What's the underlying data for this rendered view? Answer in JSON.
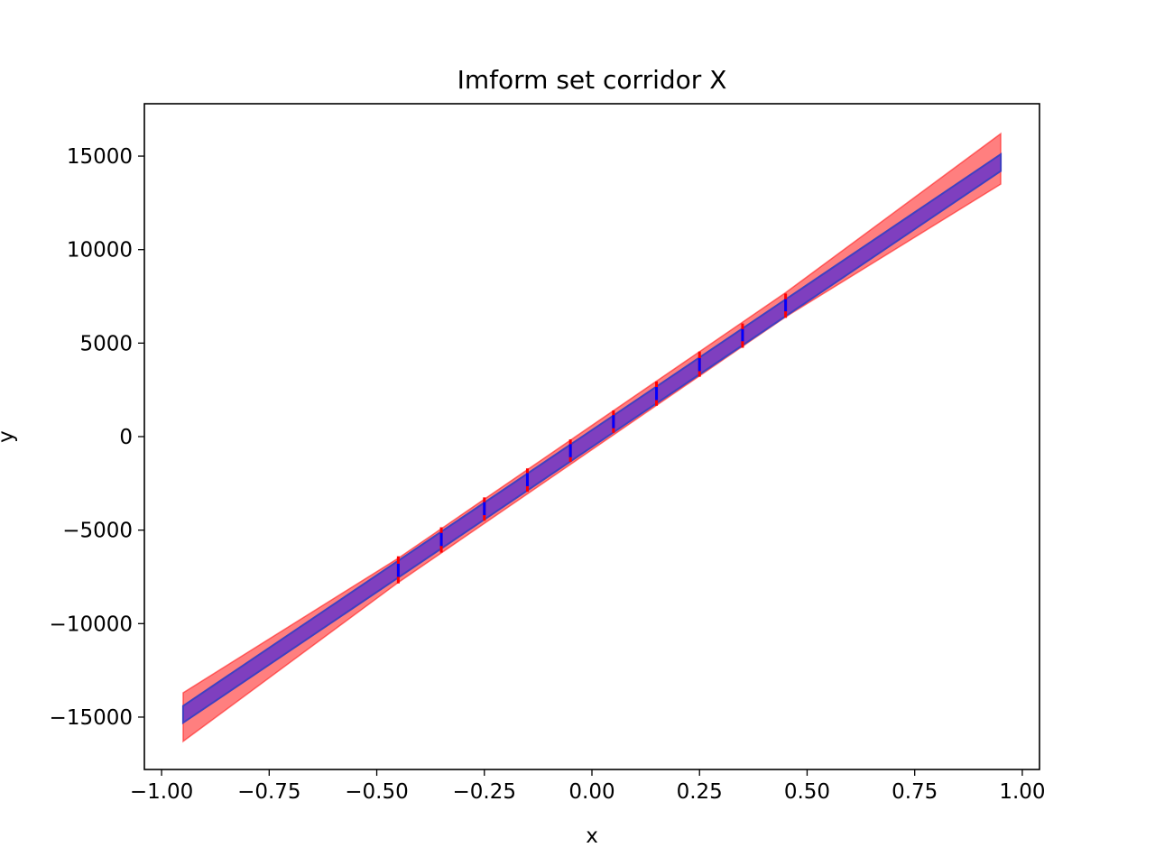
{
  "chart_data": {
    "type": "line",
    "title": "Imform set corridor X",
    "xlabel": "x",
    "ylabel": "y",
    "xlim": [
      -1.04,
      1.04
    ],
    "ylim": [
      -17800,
      17800
    ],
    "xticks": [
      -1.0,
      -0.75,
      -0.5,
      -0.25,
      0.0,
      0.25,
      0.5,
      0.75,
      1.0
    ],
    "xtick_labels": [
      "−1.00",
      "−0.75",
      "−0.50",
      "−0.25",
      "0.00",
      "0.25",
      "0.50",
      "0.75",
      "1.00"
    ],
    "yticks": [
      -15000,
      -10000,
      -5000,
      0,
      5000,
      10000,
      15000
    ],
    "ytick_labels": [
      "−15000",
      "−10000",
      "−5000",
      "0",
      "5000",
      "10000",
      "15000"
    ],
    "grid": false,
    "colors": {
      "outer_band": "#ff0000",
      "inner_band": "#0000ff",
      "inner_edge": "#4040c0"
    },
    "outer_corridor": {
      "x": [
        -0.95,
        -0.45,
        0.45,
        0.95
      ],
      "upper": [
        -13700,
        -6500,
        7700,
        16200
      ],
      "lower": [
        -16300,
        -7800,
        6400,
        13500
      ]
    },
    "inner_corridor": {
      "x": [
        -0.95,
        0.95
      ],
      "upper": [
        -14400,
        15100
      ],
      "lower": [
        -15300,
        14200
      ]
    },
    "measurements": {
      "x": [
        -0.45,
        -0.35,
        -0.25,
        -0.15,
        -0.05,
        0.05,
        0.15,
        0.25,
        0.35,
        0.45
      ],
      "outer_lo": [
        -7850,
        -6200,
        -4500,
        -2950,
        -1350,
        200,
        1650,
        3200,
        4750,
        6350
      ],
      "outer_hi": [
        -6400,
        -4850,
        -3250,
        -1700,
        -150,
        1400,
        2950,
        4550,
        6050,
        7650
      ],
      "inner_lo": [
        -7500,
        -5850,
        -4200,
        -2650,
        -1100,
        450,
        1950,
        3500,
        5100,
        6700
      ],
      "inner_hi": [
        -6800,
        -5150,
        -3500,
        -1950,
        -400,
        1150,
        2650,
        4200,
        5750,
        7350
      ]
    }
  }
}
